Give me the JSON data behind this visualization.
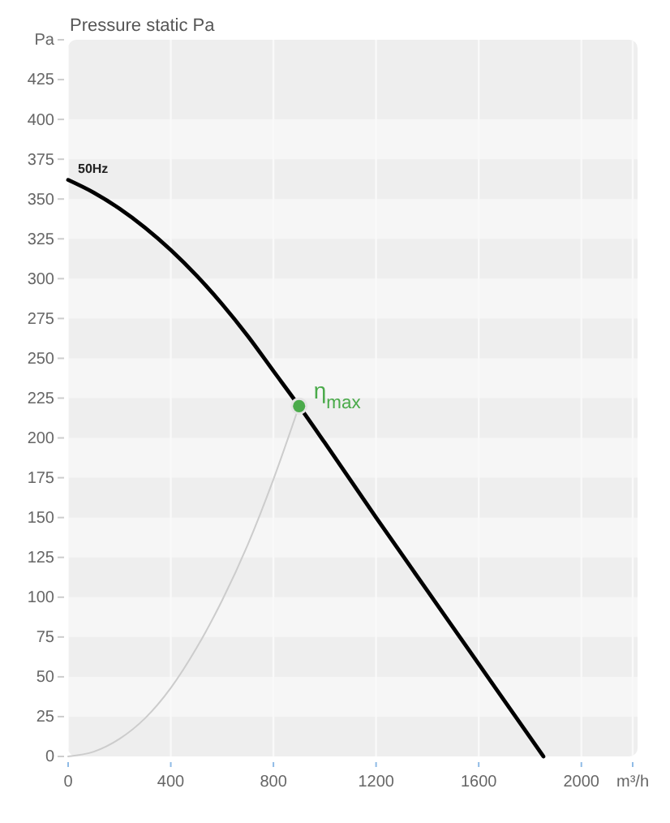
{
  "chart_data": {
    "type": "line",
    "ylabel": "Pressure static Pa",
    "xlim": [
      0,
      2200
    ],
    "xticks": [
      0,
      400,
      800,
      1200,
      1600,
      2000,
      {
        "value": 2200,
        "label": "m³/h"
      }
    ],
    "ylim": [
      0,
      450
    ],
    "yticks": [
      0,
      25,
      50,
      75,
      100,
      125,
      150,
      175,
      200,
      225,
      250,
      275,
      300,
      325,
      350,
      375,
      400,
      425,
      {
        "value": 450,
        "label": "Pa"
      }
    ],
    "grid": true,
    "series": [
      {
        "name": "50Hz",
        "color": "#000000",
        "x": [
          0,
          100,
          200,
          300,
          400,
          500,
          600,
          700,
          800,
          900,
          1000,
          1200,
          1400,
          1600,
          1800,
          1852
        ],
        "values": [
          362,
          354,
          344,
          332,
          318,
          302,
          284,
          264,
          242,
          220,
          197,
          150,
          104,
          58,
          12,
          0
        ]
      },
      {
        "color": "#cccccc",
        "x": [
          0,
          100,
          200,
          300,
          400,
          500,
          600,
          700,
          800,
          900
        ],
        "values": [
          0,
          3,
          11,
          24,
          43,
          68,
          98,
          133,
          174,
          220
        ]
      },
      {
        "type": "scatter",
        "name": "η$_{max}$",
        "color": "#4aaa4a",
        "marker": "circle",
        "x": [
          900
        ],
        "values": [
          220
        ]
      }
    ]
  }
}
